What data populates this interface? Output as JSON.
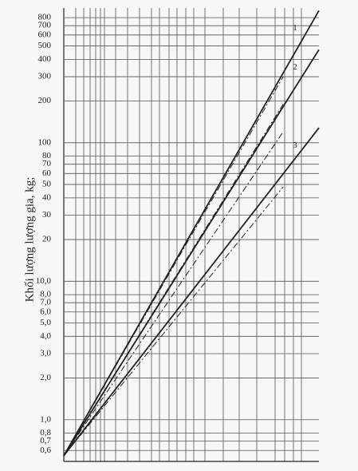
{
  "chart_data": {
    "type": "line",
    "y_label": "Khối lượng lượng gia, kg;",
    "y_log": true,
    "ylim": [
      0.5,
      940
    ],
    "xlim": [
      0,
      100
    ],
    "yticks": [
      {
        "value": 0.6,
        "label": "0,6"
      },
      {
        "value": 0.7,
        "label": "0,7"
      },
      {
        "value": 0.8,
        "label": "0,8"
      },
      {
        "value": 1,
        "label": "1,0"
      },
      {
        "value": 2,
        "label": "2,0"
      },
      {
        "value": 3,
        "label": "3,0"
      },
      {
        "value": 4,
        "label": "4,0"
      },
      {
        "value": 5,
        "label": "5,0"
      },
      {
        "value": 6,
        "label": "6,0"
      },
      {
        "value": 7,
        "label": "7,0"
      },
      {
        "value": 8,
        "label": "8,0"
      },
      {
        "value": 10,
        "label": "10,0"
      },
      20,
      30,
      40,
      50,
      60,
      70,
      80,
      100,
      200,
      300,
      400,
      500,
      600,
      700,
      800
    ],
    "grid": true,
    "color": "#222222",
    "series": [
      {
        "name": "1",
        "x": [
          0,
          100
        ],
        "values": [
          0.55,
          900
        ]
      },
      {
        "name": "2",
        "x": [
          0,
          100
        ],
        "values": [
          0.55,
          470
        ]
      },
      {
        "name": "3",
        "x": [
          0,
          100
        ],
        "values": [
          0.55,
          128
        ]
      }
    ],
    "dashed_series": [
      {
        "x": [
          0,
          86
        ],
        "values": [
          0.55,
          300
        ]
      },
      {
        "x": [
          0,
          86
        ],
        "values": [
          0.55,
          190
        ]
      },
      {
        "x": [
          0,
          86
        ],
        "values": [
          0.55,
          120
        ]
      },
      {
        "x": [
          0,
          86
        ],
        "values": [
          0.55,
          48
        ]
      }
    ]
  }
}
